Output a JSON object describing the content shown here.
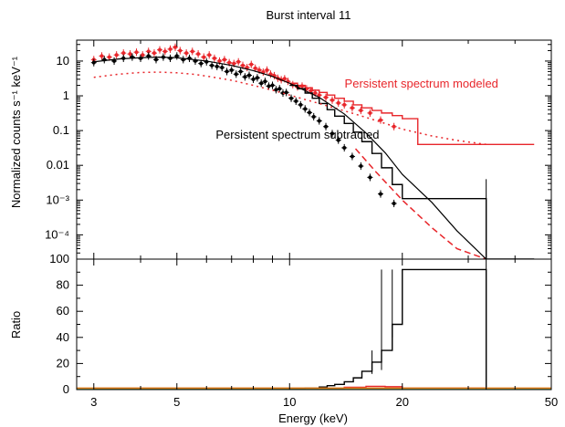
{
  "chart_data": {
    "type": "line",
    "title": "Burst interval 11",
    "xlabel": "Energy (keV)",
    "x_scale": "log",
    "xlim": [
      2.7,
      50
    ],
    "x_ticks": [
      3,
      5,
      10,
      20,
      50
    ],
    "x_tick_labels": [
      "3",
      "5",
      "10",
      "20",
      "50"
    ],
    "colors": {
      "black": "#000000",
      "red": "#e8262b",
      "green": "#3aa63a",
      "orange": "#e07a1a"
    },
    "panels": [
      {
        "name": "spectrum",
        "ylabel": "Normalized counts s⁻¹ keV⁻¹",
        "y_scale": "log",
        "ylim": [
          2e-05,
          40
        ],
        "y_ticks": [
          10,
          1,
          0.1,
          0.01,
          0.001,
          0.0001
        ],
        "y_tick_labels": [
          "10",
          "1",
          "0.1",
          "0.01",
          "10⁻³",
          "10⁻⁴"
        ],
        "annotations": [
          {
            "text": "Persistent spectrum modeled",
            "color": "#e8262b",
            "x": 22.5,
            "y": 2.2
          },
          {
            "text": "Persistent spectrum subtracted",
            "color": "#000000",
            "x": 10.5,
            "y": 0.075
          }
        ],
        "series": [
          {
            "style": "points_with_errors",
            "color": "#e8262b",
            "x": [
              3.0,
              3.15,
              3.3,
              3.45,
              3.6,
              3.75,
              3.9,
              4.05,
              4.2,
              4.35,
              4.5,
              4.65,
              4.8,
              4.95,
              5.1,
              5.3,
              5.5,
              5.7,
              5.9,
              6.1,
              6.3,
              6.5,
              6.7,
              6.9,
              7.1,
              7.3,
              7.5,
              7.7,
              7.9,
              8.1,
              8.3,
              8.5,
              8.7,
              8.9,
              9.1,
              9.3,
              9.5,
              9.7,
              9.9,
              10.2,
              10.5,
              10.8,
              11.1,
              11.4,
              11.7,
              12.0,
              12.5,
              13.0,
              13.5,
              14.0,
              14.7,
              15.5,
              16.4,
              17.5,
              19.0
            ],
            "y": [
              11,
              14,
              13,
              15,
              17,
              16,
              18,
              15,
              19,
              17,
              21,
              19,
              22,
              25,
              20,
              17,
              19,
              16,
              13,
              15,
              12,
              10,
              11,
              9.0,
              8.5,
              9.5,
              7.5,
              6.5,
              8.0,
              6.2,
              5.5,
              4.8,
              5.5,
              4.2,
              3.8,
              3.2,
              2.9,
              3.1,
              2.6,
              2.1,
              1.8,
              1.9,
              1.6,
              1.4,
              1.2,
              1.05,
              0.9,
              0.75,
              0.62,
              0.55,
              0.45,
              0.38,
              0.32,
              0.2,
              0.13
            ]
          },
          {
            "style": "points_with_errors",
            "color": "#000000",
            "x": [
              3.0,
              3.2,
              3.4,
              3.6,
              3.8,
              4.0,
              4.2,
              4.4,
              4.6,
              4.8,
              5.0,
              5.2,
              5.4,
              5.6,
              5.8,
              6.0,
              6.2,
              6.4,
              6.6,
              6.8,
              7.0,
              7.2,
              7.4,
              7.6,
              7.8,
              8.0,
              8.2,
              8.4,
              8.6,
              8.8,
              9.0,
              9.2,
              9.4,
              9.6,
              9.8,
              10.1,
              10.4,
              10.7,
              11.0,
              11.3,
              11.6,
              12.0,
              12.5,
              13.0,
              13.5,
              14.0,
              14.7,
              15.5,
              16.4,
              17.5,
              19.0
            ],
            "y": [
              9,
              11,
              10,
              12,
              13,
              12,
              14,
              11,
              13,
              12,
              14,
              11,
              12,
              10,
              8.5,
              9.5,
              7.5,
              7.0,
              6.5,
              5.0,
              5.5,
              4.2,
              5.0,
              3.5,
              3.9,
              3.0,
              3.3,
              2.3,
              2.6,
              1.9,
              2.0,
              1.5,
              1.6,
              1.2,
              1.25,
              0.85,
              0.7,
              0.55,
              0.42,
              0.33,
              0.25,
              0.19,
              0.13,
              0.082,
              0.053,
              0.032,
              0.018,
              0.0095,
              0.0045,
              0.0015,
              0.0008
            ]
          },
          {
            "style": "step",
            "color": "#e8262b",
            "x": [
              10,
              10.5,
              11,
              11.5,
              12,
              12.6,
              13.2,
              14,
              14.8,
              15.6,
              16.6,
              17.6,
              18.8,
              20,
              22,
              33.5,
              45
            ],
            "y": [
              2.3,
              2.0,
              1.7,
              1.45,
              1.25,
              1.05,
              0.85,
              0.7,
              0.55,
              0.45,
              0.38,
              0.32,
              0.27,
              0.22,
              0.04,
              0.04,
              0.04
            ]
          },
          {
            "style": "step",
            "color": "#000000",
            "x": [
              10,
              10.5,
              11,
              11.5,
              12,
              12.6,
              13.2,
              14,
              14.8,
              15.6,
              16.6,
              17.6,
              18.8,
              20,
              33.5,
              45
            ],
            "y": [
              2.0,
              1.6,
              1.2,
              0.85,
              0.6,
              0.4,
              0.26,
              0.16,
              0.09,
              0.048,
              0.022,
              0.0085,
              0.0028,
              0.0011,
              1.5e-05,
              1.5e-05
            ]
          },
          {
            "style": "dotted",
            "color": "#e8262b",
            "x": [
              3,
              3.5,
              4,
              4.5,
              5,
              5.5,
              6,
              7,
              8,
              9,
              10,
              12,
              14,
              16,
              18,
              20,
              24,
              28,
              33.5
            ],
            "y": [
              3.4,
              4.2,
              4.7,
              4.8,
              4.6,
              4.2,
              3.7,
              2.8,
              2.0,
              1.45,
              1.05,
              0.6,
              0.37,
              0.24,
              0.16,
              0.11,
              0.07,
              0.052,
              0.04
            ]
          },
          {
            "style": "dashed",
            "color": "#e8262b",
            "x": [
              15,
              17,
              20,
              24,
              28,
              33.5
            ],
            "y": [
              0.03,
              0.0065,
              0.001,
              0.00016,
              4e-05,
              1.4e-05
            ]
          },
          {
            "style": "model_line",
            "color": "#000000",
            "x": [
              3,
              3.5,
              4,
              4.5,
              5,
              6,
              7,
              8,
              9,
              10,
              12,
              14,
              16,
              18,
              20,
              24,
              28,
              33.5
            ],
            "y": [
              9.5,
              11.5,
              12.5,
              13,
              12.5,
              10,
              7.5,
              5.3,
              3.6,
              2.3,
              0.9,
              0.3,
              0.085,
              0.023,
              0.0055,
              0.00085,
              0.00013,
              1.4e-05
            ]
          },
          {
            "style": "errorbar_points",
            "color": "#000000",
            "x": [
              33.5
            ],
            "y": [
              1.5e-05
            ],
            "y_low": [
              1e-05
            ],
            "y_high": [
              0.004
            ]
          }
        ]
      },
      {
        "name": "ratio",
        "ylabel": "Ratio",
        "y_scale": "linear",
        "ylim": [
          0,
          100
        ],
        "y_ticks": [
          0,
          20,
          40,
          60,
          80,
          100
        ],
        "y_tick_labels": [
          "0",
          "20",
          "40",
          "60",
          "80",
          "100"
        ],
        "series": [
          {
            "style": "step",
            "color": "#000000",
            "x": [
              3,
              9,
              11,
              12,
              12.6,
              13.2,
              14,
              14.8,
              15.6,
              16.6,
              17.6,
              18.8,
              20,
              33.5
            ],
            "y": [
              1.0,
              1.0,
              1.2,
              2,
              3,
              4,
              6,
              9,
              14,
              21,
              30,
              50,
              92,
              0
            ]
          },
          {
            "style": "step",
            "color": "#e8262b",
            "x": [
              3,
              10,
              14,
              16,
              18,
              20,
              33.5
            ],
            "y": [
              1.0,
              1.0,
              1.8,
              2.5,
              2.2,
              1.2,
              1.0
            ]
          },
          {
            "style": "line",
            "color": "#3aa63a",
            "x": [
              2.7,
              50
            ],
            "y": [
              1.0,
              1.0
            ]
          },
          {
            "style": "line",
            "color": "#e07a1a",
            "x": [
              2.7,
              50
            ],
            "y": [
              1.1,
              1.1
            ]
          },
          {
            "style": "errorbar_points",
            "color": "#000000",
            "x": [
              16.6,
              17.6,
              18.8,
              33.5
            ],
            "y": [
              21,
              50,
              92,
              0
            ],
            "y_low": [
              12,
              15,
              40,
              0
            ],
            "y_high": [
              30,
              92,
              92,
              100
            ]
          }
        ]
      }
    ]
  }
}
